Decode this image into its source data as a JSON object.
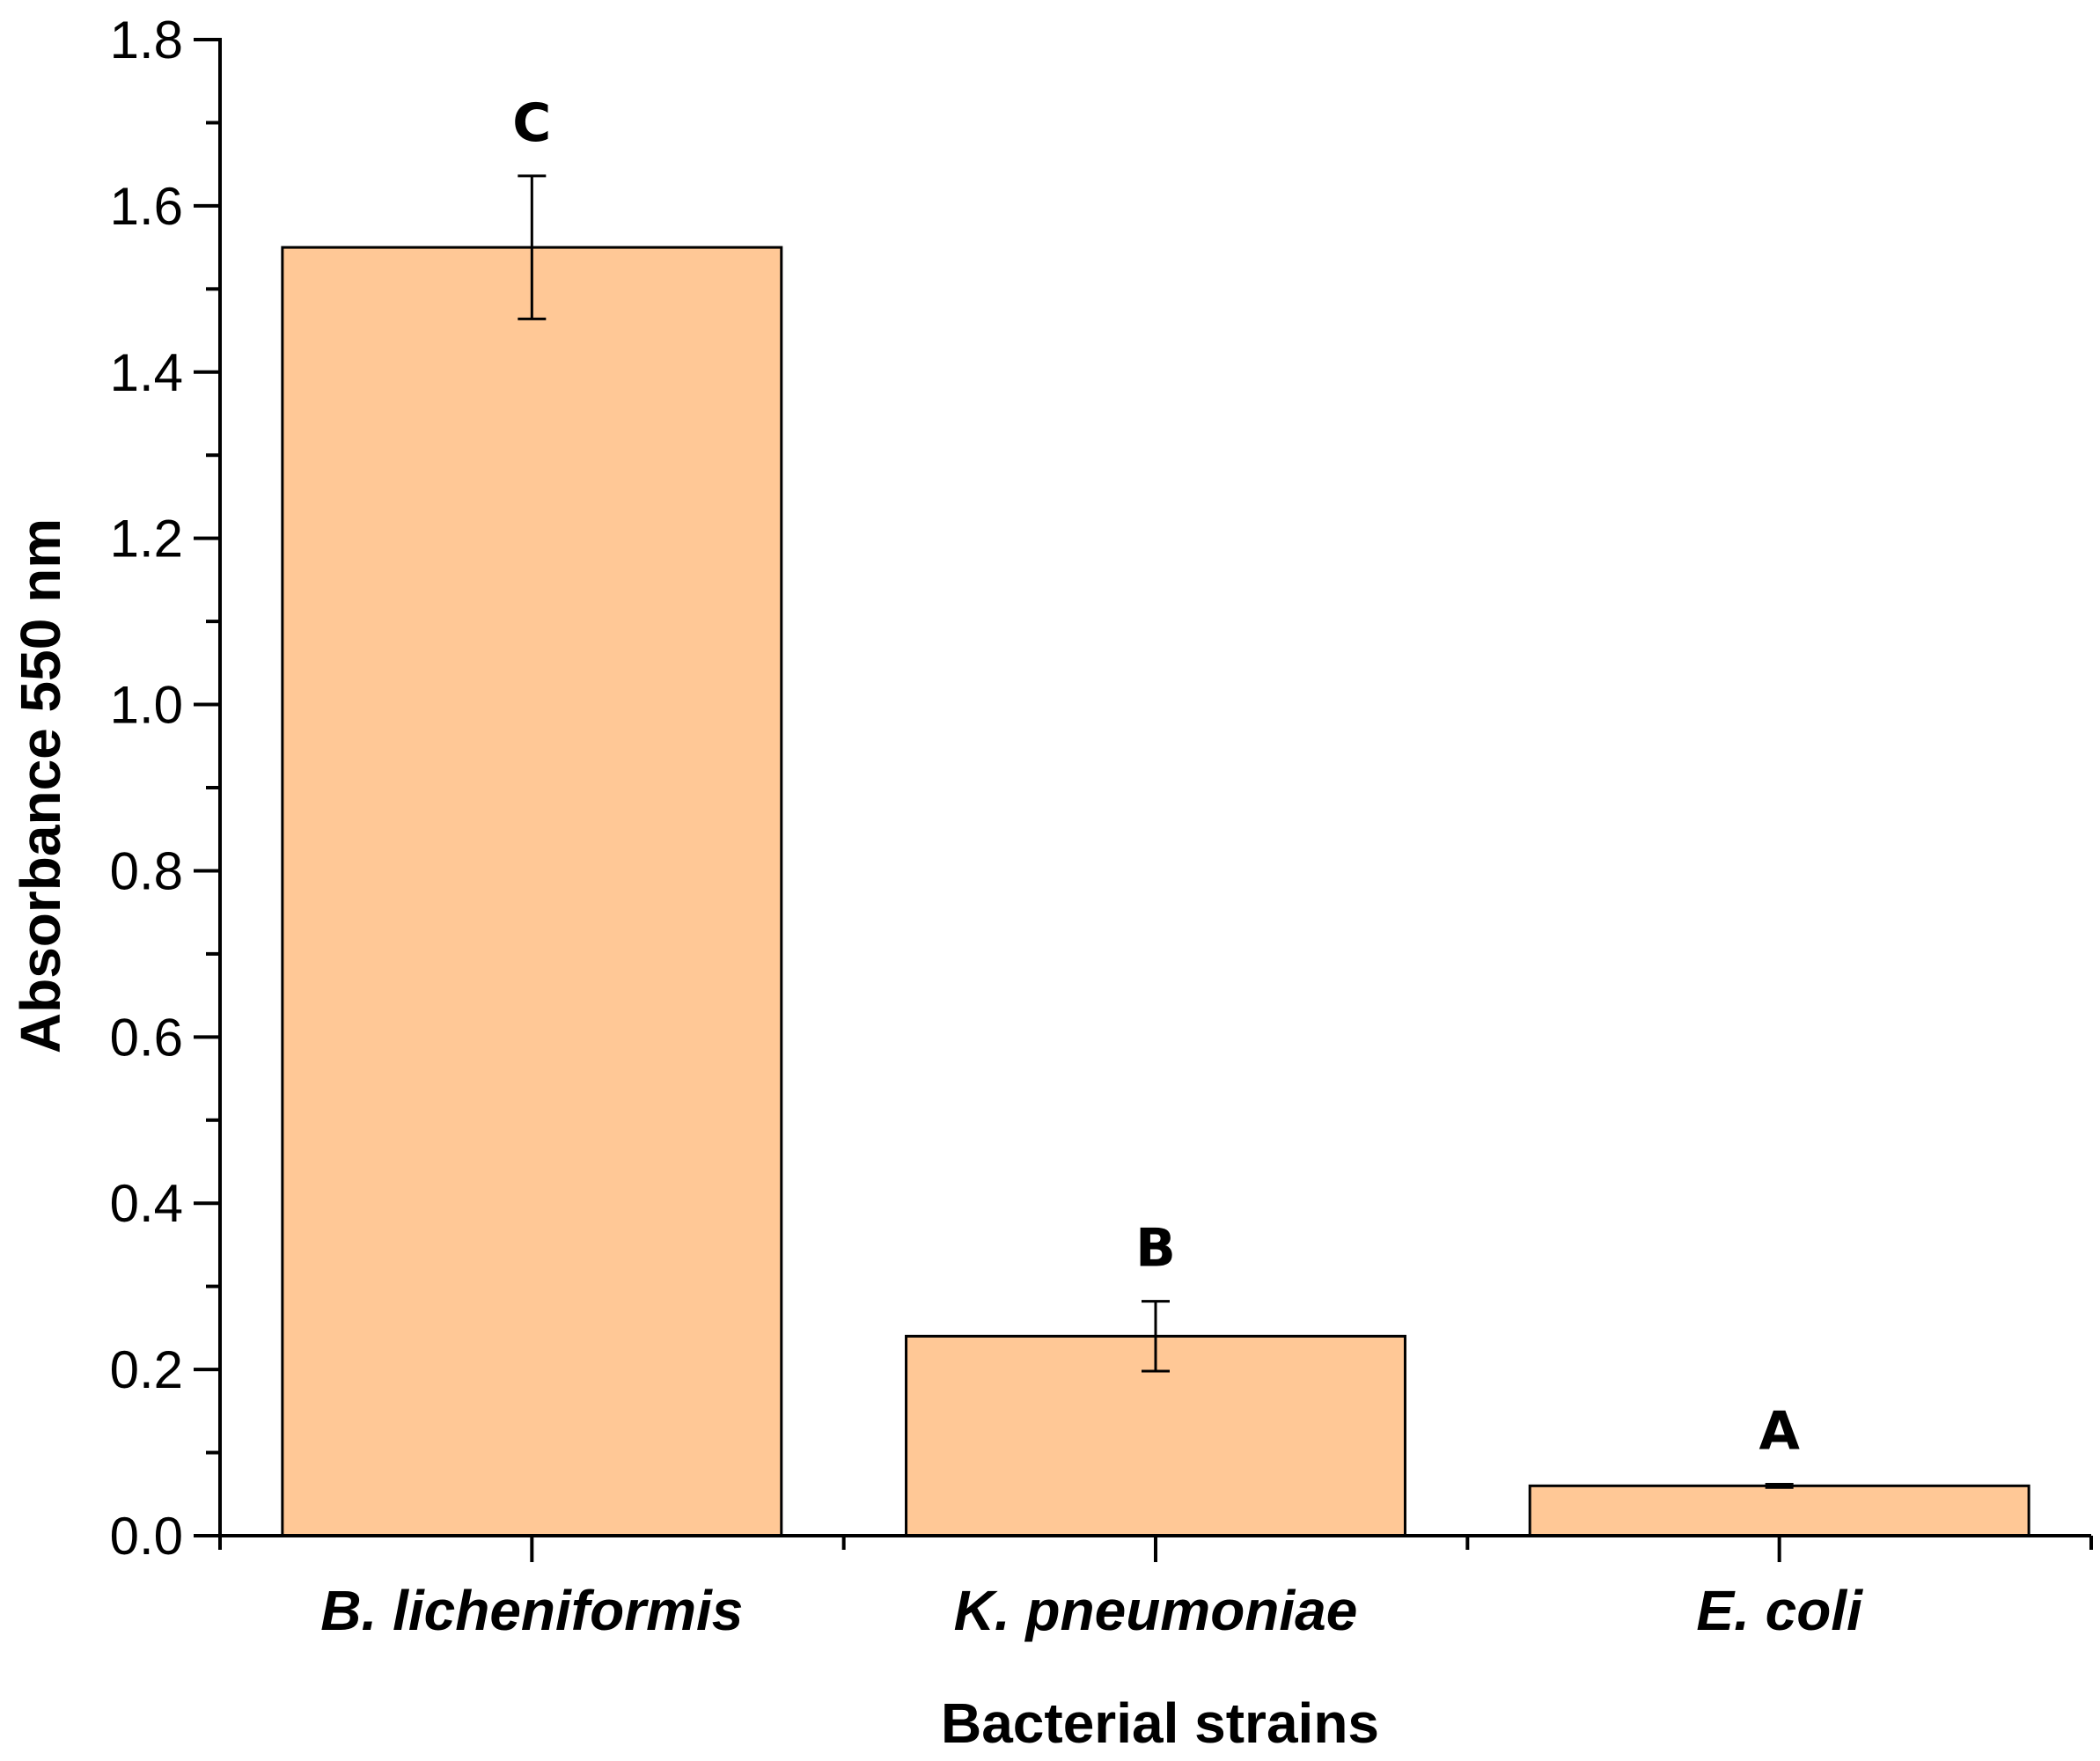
{
  "chart_data": {
    "type": "bar",
    "title": "",
    "xlabel": "Bacterial strains",
    "ylabel": "Absorbance 550 nm",
    "ylim": [
      0,
      1.8
    ],
    "yticks": [
      "0.0",
      "0.2",
      "0.4",
      "0.6",
      "0.8",
      "1.0",
      "1.2",
      "1.4",
      "1.6",
      "1.8"
    ],
    "grid": false,
    "categories": [
      "B. licheniformis",
      "K. pneumoniae",
      "E. coli"
    ],
    "values": [
      1.55,
      0.24,
      0.06
    ],
    "errors": [
      0.086,
      0.042,
      0.002
    ],
    "significance_letters": [
      "C",
      "B",
      "A"
    ],
    "bar_color": "#FFC896",
    "bar_edge_color": "#000000"
  }
}
